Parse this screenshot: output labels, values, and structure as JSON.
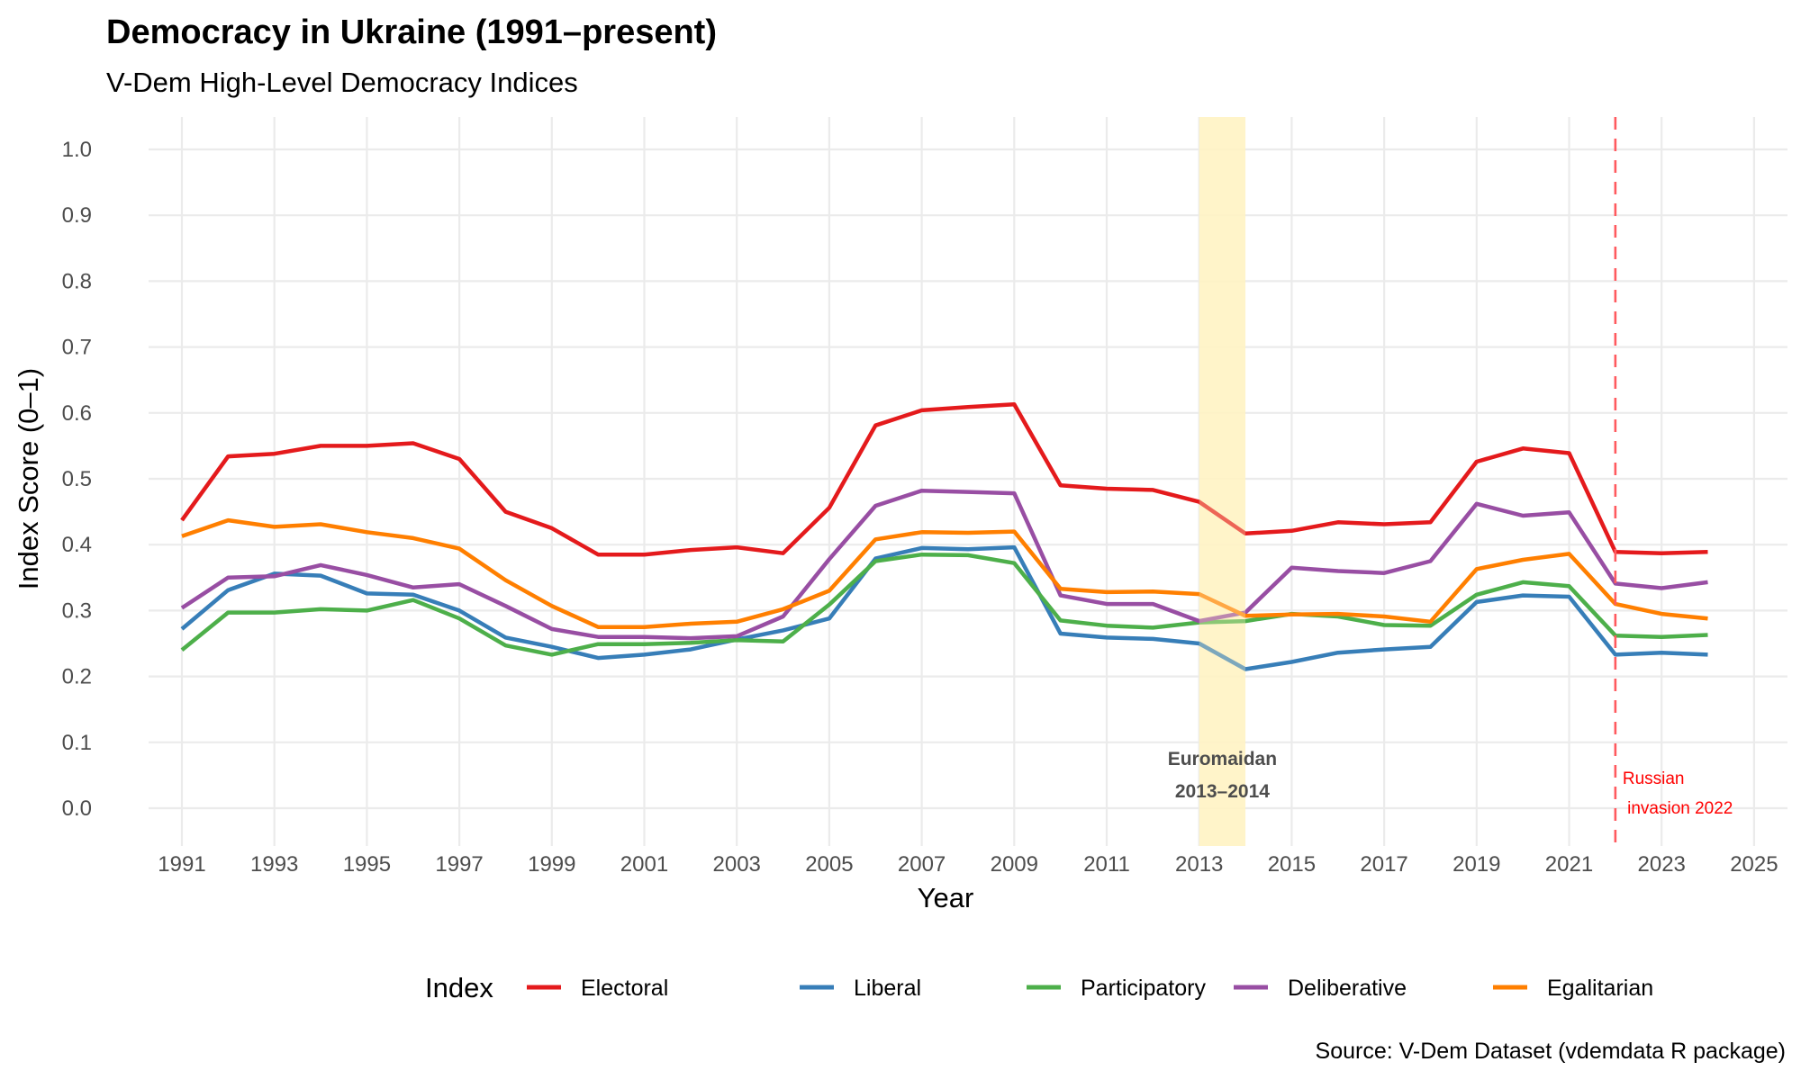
{
  "chart_data": {
    "type": "line",
    "title": "Democracy in Ukraine (1991–present)",
    "subtitle": "V-Dem High-Level Democracy Indices",
    "xlabel": "Year",
    "ylabel": "Index Score (0–1)",
    "caption": "Source: V-Dem Dataset (vdemdata R package)",
    "xlim": [
      1990.4,
      2025.6
    ],
    "ylim": [
      -0.05,
      1.05
    ],
    "grid": true,
    "x_ticks": [
      "1991",
      "1993",
      "1995",
      "1997",
      "1999",
      "2001",
      "2003",
      "2005",
      "2007",
      "2009",
      "2011",
      "2013",
      "2015",
      "2017",
      "2019",
      "2021",
      "2023",
      "2025"
    ],
    "y_ticks": [
      "0.0",
      "0.1",
      "0.2",
      "0.3",
      "0.4",
      "0.5",
      "0.6",
      "0.7",
      "0.8",
      "0.9",
      "1.0"
    ],
    "legend": {
      "title": "Index",
      "placement": "bottom"
    },
    "x": [
      1991,
      1992,
      1993,
      1994,
      1995,
      1996,
      1997,
      1998,
      1999,
      2000,
      2001,
      2002,
      2003,
      2004,
      2005,
      2006,
      2007,
      2008,
      2009,
      2010,
      2011,
      2012,
      2013,
      2014,
      2015,
      2016,
      2017,
      2018,
      2019,
      2020,
      2021,
      2022,
      2023,
      2024
    ],
    "series": [
      {
        "name": "Electoral",
        "color": "#e41a1c",
        "values": [
          0.437,
          0.534,
          0.538,
          0.55,
          0.55,
          0.554,
          0.53,
          0.45,
          0.425,
          0.385,
          0.385,
          0.392,
          0.396,
          0.387,
          0.456,
          0.581,
          0.604,
          0.609,
          0.613,
          0.49,
          0.485,
          0.483,
          0.465,
          0.417,
          0.421,
          0.434,
          0.431,
          0.434,
          0.526,
          0.546,
          0.539,
          0.389,
          0.387,
          0.389
        ]
      },
      {
        "name": "Liberal",
        "color": "#377eb8",
        "values": [
          0.272,
          0.331,
          0.356,
          0.353,
          0.326,
          0.324,
          0.3,
          0.259,
          0.245,
          0.228,
          0.233,
          0.241,
          0.256,
          0.27,
          0.288,
          0.379,
          0.395,
          0.393,
          0.396,
          0.265,
          0.259,
          0.257,
          0.25,
          0.211,
          0.222,
          0.236,
          0.241,
          0.245,
          0.313,
          0.323,
          0.321,
          0.233,
          0.236,
          0.233
        ]
      },
      {
        "name": "Participatory",
        "color": "#4daf4a",
        "values": [
          0.24,
          0.297,
          0.297,
          0.302,
          0.3,
          0.316,
          0.288,
          0.247,
          0.233,
          0.249,
          0.249,
          0.251,
          0.255,
          0.253,
          0.309,
          0.375,
          0.385,
          0.384,
          0.372,
          0.285,
          0.277,
          0.274,
          0.282,
          0.284,
          0.295,
          0.291,
          0.278,
          0.277,
          0.324,
          0.343,
          0.337,
          0.262,
          0.26,
          0.263
        ]
      },
      {
        "name": "Deliberative",
        "color": "#984ea3",
        "values": [
          0.304,
          0.35,
          0.352,
          0.369,
          0.354,
          0.335,
          0.34,
          0.307,
          0.272,
          0.26,
          0.26,
          0.258,
          0.261,
          0.291,
          0.378,
          0.459,
          0.482,
          0.48,
          0.478,
          0.323,
          0.31,
          0.31,
          0.284,
          0.297,
          0.365,
          0.36,
          0.357,
          0.375,
          0.462,
          0.444,
          0.449,
          0.341,
          0.334,
          0.343
        ]
      },
      {
        "name": "Egalitarian",
        "color": "#ff7f00",
        "values": [
          0.413,
          0.437,
          0.427,
          0.431,
          0.419,
          0.41,
          0.394,
          0.346,
          0.307,
          0.275,
          0.275,
          0.28,
          0.283,
          0.302,
          0.33,
          0.408,
          0.419,
          0.418,
          0.42,
          0.333,
          0.328,
          0.329,
          0.325,
          0.292,
          0.294,
          0.295,
          0.291,
          0.283,
          0.363,
          0.377,
          0.386,
          0.31,
          0.295,
          0.288
        ]
      }
    ],
    "annotations": [
      {
        "type": "shaded-period",
        "x_start": 2013,
        "x_end": 2014,
        "color": "#fff3c4",
        "label_line1": "Euromaidan",
        "label_line2": "2013–2014"
      },
      {
        "type": "vline-dashed",
        "x": 2022,
        "color": "#ff5a5f",
        "label_line1": "Russian",
        "label_line2": " invasion 2022",
        "label_color": "#ff0000"
      }
    ]
  }
}
